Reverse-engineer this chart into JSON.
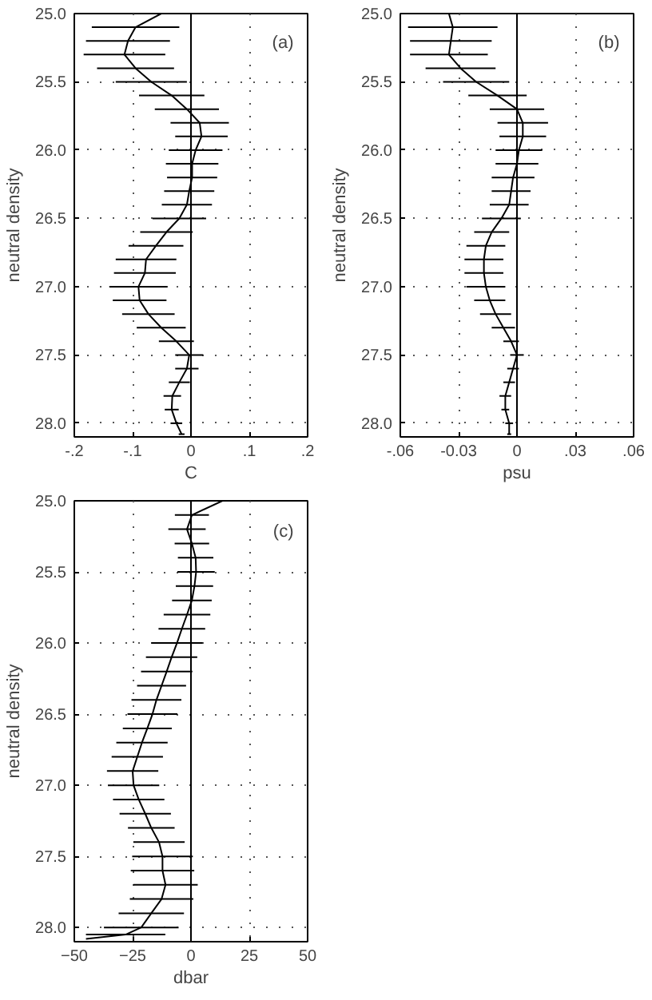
{
  "chart_data": [
    {
      "type": "line",
      "xlabel": "C",
      "ylabel": "neutral density",
      "annotations": [
        "(a)"
      ],
      "xlim": [
        -0.2,
        0.2
      ],
      "ylim": [
        28.1,
        25.0
      ],
      "xticks": [
        {
          "value": -0.2,
          "label": "-.2"
        },
        {
          "value": -0.1,
          "label": "-.1"
        },
        {
          "value": 0,
          "label": "0"
        },
        {
          "value": 0.1,
          "label": ".1"
        },
        {
          "value": 0.2,
          "label": ".2"
        }
      ],
      "yticks": [
        {
          "value": 25.0,
          "label": "25.0"
        },
        {
          "value": 25.5,
          "label": "25.5"
        },
        {
          "value": 26.0,
          "label": "26.0"
        },
        {
          "value": 26.5,
          "label": "26.5"
        },
        {
          "value": 27.0,
          "label": "27.0"
        },
        {
          "value": 27.5,
          "label": "27.5"
        },
        {
          "value": 28.0,
          "label": "28.0"
        }
      ],
      "grid": true,
      "line_style": "solid",
      "ref_lines": [
        {
          "axis": "x",
          "value": 0
        }
      ],
      "series": [
        {
          "color": "#000000",
          "x": [
            -0.051,
            -0.095,
            -0.108,
            -0.114,
            -0.095,
            -0.068,
            -0.033,
            -0.007,
            0.015,
            0.018,
            0.008,
            0.002,
            0.002,
            -0.003,
            -0.007,
            -0.02,
            -0.042,
            -0.06,
            -0.077,
            -0.079,
            -0.09,
            -0.088,
            -0.073,
            -0.051,
            -0.025,
            -0.003,
            -0.007,
            -0.02,
            -0.032,
            -0.033,
            -0.025,
            -0.016
          ],
          "values": [
            25.0,
            25.1,
            25.2,
            25.3,
            25.4,
            25.5,
            25.6,
            25.7,
            25.8,
            25.9,
            26.0,
            26.1,
            26.2,
            26.3,
            26.4,
            26.5,
            26.6,
            26.7,
            26.8,
            26.9,
            27.0,
            27.1,
            27.2,
            27.3,
            27.4,
            27.5,
            27.6,
            27.7,
            27.8,
            27.9,
            28.0,
            28.08
          ],
          "xerrors": [
            null,
            0.075,
            0.072,
            0.07,
            0.066,
            0.061,
            0.056,
            0.055,
            0.05,
            0.045,
            0.046,
            0.045,
            0.043,
            0.043,
            0.043,
            0.046,
            0.045,
            0.047,
            0.052,
            0.053,
            0.05,
            0.046,
            0.045,
            0.042,
            0.03,
            0.024,
            0.02,
            0.018,
            0.015,
            0.012,
            0.01,
            0.005
          ]
        }
      ]
    },
    {
      "type": "line",
      "xlabel": "psu",
      "ylabel": "neutral density",
      "annotations": [
        "(b)"
      ],
      "xlim": [
        -0.06,
        0.06
      ],
      "ylim": [
        28.1,
        25.0
      ],
      "xticks": [
        {
          "value": -0.06,
          "label": "-.06"
        },
        {
          "value": -0.03,
          "label": "-0.03"
        },
        {
          "value": 0,
          "label": "0"
        },
        {
          "value": 0.03,
          "label": ".03"
        },
        {
          "value": 0.06,
          "label": ".06"
        }
      ],
      "yticks": [
        {
          "value": 25.0,
          "label": "25.0"
        },
        {
          "value": 25.5,
          "label": "25.5"
        },
        {
          "value": 26.0,
          "label": "26.0"
        },
        {
          "value": 26.5,
          "label": "26.5"
        },
        {
          "value": 27.0,
          "label": "27.0"
        },
        {
          "value": 27.5,
          "label": "27.5"
        },
        {
          "value": 28.0,
          "label": "28.0"
        }
      ],
      "grid": true,
      "line_style": "solid",
      "ref_lines": [
        {
          "axis": "x",
          "value": 0
        }
      ],
      "series": [
        {
          "color": "#000000",
          "x": [
            -0.035,
            -0.033,
            -0.034,
            -0.035,
            -0.029,
            -0.021,
            -0.01,
            0.0,
            0.003,
            0.003,
            0.001,
            0.0,
            -0.002,
            -0.003,
            -0.004,
            -0.008,
            -0.013,
            -0.016,
            -0.017,
            -0.017,
            -0.016,
            -0.014,
            -0.011,
            -0.007,
            -0.003,
            0.0,
            -0.002,
            -0.004,
            -0.006,
            -0.006,
            -0.004,
            -0.004
          ],
          "values": [
            25.0,
            25.1,
            25.2,
            25.3,
            25.4,
            25.5,
            25.6,
            25.7,
            25.8,
            25.9,
            26.0,
            26.1,
            26.2,
            26.3,
            26.4,
            26.5,
            26.6,
            26.7,
            26.8,
            26.9,
            27.0,
            27.1,
            27.2,
            27.3,
            27.4,
            27.5,
            27.6,
            27.7,
            27.8,
            27.9,
            28.0,
            28.08
          ],
          "xerrors": [
            null,
            0.023,
            0.021,
            0.02,
            0.018,
            0.017,
            0.015,
            0.014,
            0.013,
            0.012,
            0.012,
            0.011,
            0.011,
            0.01,
            0.01,
            0.01,
            0.009,
            0.01,
            0.01,
            0.01,
            0.01,
            0.008,
            0.008,
            0.006,
            0.004,
            0.0035,
            0.003,
            0.003,
            0.003,
            0.002,
            0.002,
            0.001
          ]
        }
      ]
    },
    {
      "type": "line",
      "xlabel": "dbar",
      "ylabel": "neutral density",
      "annotations": [
        "(c)"
      ],
      "xlim": [
        -50,
        50
      ],
      "ylim": [
        28.1,
        25.0
      ],
      "xticks": [
        -50,
        -25,
        0,
        25,
        50
      ],
      "yticks": [
        {
          "value": 25.0,
          "label": "25.0"
        },
        {
          "value": 25.5,
          "label": "25.5"
        },
        {
          "value": 26.0,
          "label": "26.0"
        },
        {
          "value": 26.5,
          "label": "26.5"
        },
        {
          "value": 27.0,
          "label": "27.0"
        },
        {
          "value": 27.5,
          "label": "27.5"
        },
        {
          "value": 28.0,
          "label": "28.0"
        }
      ],
      "grid": true,
      "line_style": "solid",
      "ref_lines": [
        {
          "axis": "x",
          "value": 0
        }
      ],
      "series": [
        {
          "color": "#000000",
          "x": [
            13.5,
            0.4,
            -1.7,
            0.4,
            2,
            2.2,
            1.5,
            0.4,
            -1.7,
            -3.9,
            -6,
            -8.3,
            -10.4,
            -12.6,
            -14.8,
            -16.5,
            -18.7,
            -21,
            -23,
            -25,
            -24.6,
            -22.4,
            -19.6,
            -17,
            -13.7,
            -12.2,
            -12.2,
            -10.9,
            -12.6,
            -17,
            -21.3,
            -28,
            -45
          ],
          "values": [
            25.0,
            25.1,
            25.2,
            25.3,
            25.4,
            25.5,
            25.6,
            25.7,
            25.8,
            25.9,
            26.0,
            26.1,
            26.2,
            26.3,
            26.4,
            26.5,
            26.6,
            26.7,
            26.8,
            26.9,
            27.0,
            27.1,
            27.2,
            27.3,
            27.4,
            27.5,
            27.6,
            27.7,
            27.8,
            27.9,
            28.0,
            28.05,
            28.08
          ],
          "xerrors": [
            null,
            7.3,
            8,
            7.4,
            7.6,
            8,
            8,
            8.5,
            10,
            10,
            11,
            11,
            11,
            10.5,
            10.7,
            10.7,
            10.5,
            11,
            11,
            11,
            11,
            11,
            11,
            10,
            11,
            13,
            13.6,
            13.8,
            13.6,
            14,
            16,
            17,
            null
          ]
        }
      ]
    }
  ]
}
